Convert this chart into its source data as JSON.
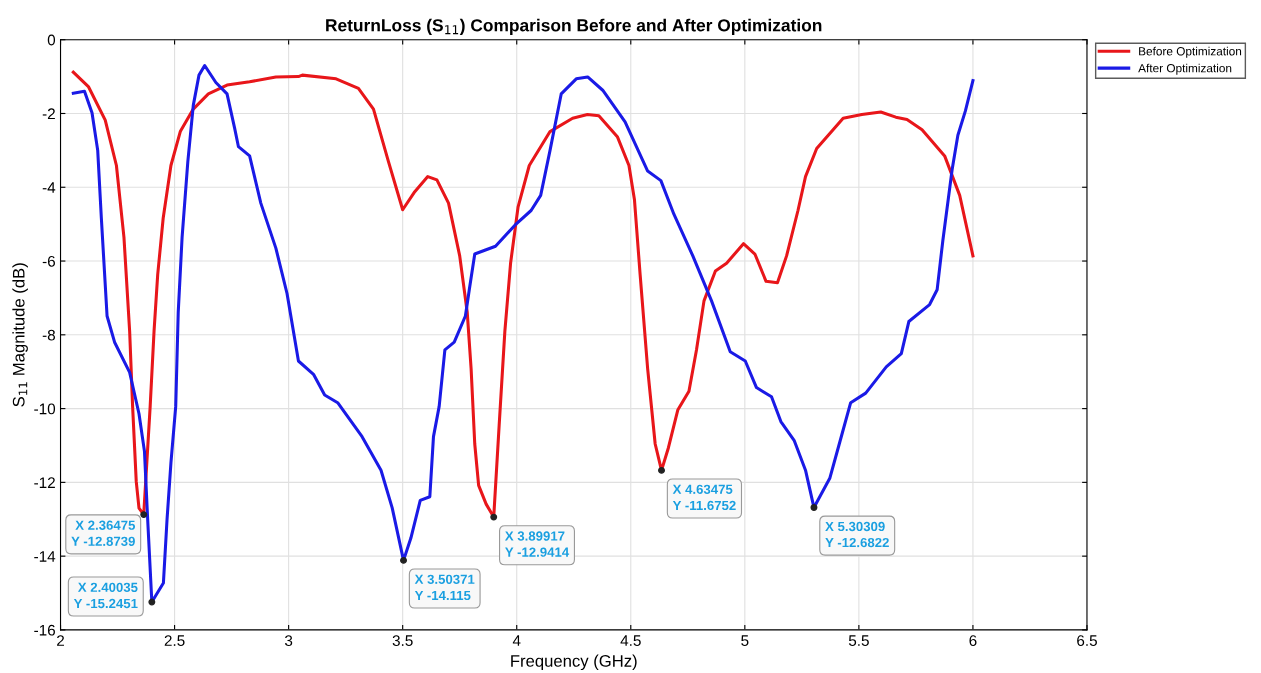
{
  "chart_data": {
    "type": "line",
    "title": "ReturnLoss (S$_{11}$) Comparison Before and After Optimization",
    "xlabel": "Frequency (GHz)",
    "ylabel": "S$_{11}$ Magnitude (dB)",
    "xlim": [
      2,
      6.5
    ],
    "xticks": [
      2,
      2.5,
      3,
      3.5,
      4,
      4.5,
      5,
      5.5,
      6,
      6.5
    ],
    "ylim": [
      -16,
      0
    ],
    "yticks": [
      -16,
      -14,
      -12,
      -10,
      -8,
      -6,
      -4,
      -2,
      0
    ],
    "grid": true,
    "legend": "top right",
    "line_style": "solid",
    "marker": "none",
    "series": [
      {
        "name": "Before Optimization",
        "color": "#e8161a",
        "x": [
          2.056,
          2.122,
          2.196,
          2.245,
          2.278,
          2.303,
          2.316,
          2.332,
          2.344,
          2.36475,
          2.393,
          2.41,
          2.426,
          2.45,
          2.484,
          2.525,
          2.582,
          2.648,
          2.73,
          2.829,
          2.944,
          3.043,
          3.06,
          3.208,
          3.306,
          3.372,
          3.438,
          3.5,
          3.553,
          3.61,
          3.65,
          3.701,
          3.75,
          3.783,
          3.8,
          3.816,
          3.833,
          3.866,
          3.89917,
          3.923,
          3.948,
          3.973,
          4.006,
          4.055,
          4.146,
          4.245,
          4.31,
          4.36,
          4.442,
          4.492,
          4.516,
          4.541,
          4.574,
          4.607,
          4.63475,
          4.665,
          4.706,
          4.755,
          4.788,
          4.821,
          4.871,
          4.92,
          4.994,
          5.044,
          5.093,
          5.143,
          5.183,
          5.233,
          5.266,
          5.315,
          5.431,
          5.513,
          5.596,
          5.662,
          5.711,
          5.777,
          5.876,
          5.942,
          6.0
        ],
        "values": [
          -0.88,
          -1.27,
          -2.18,
          -3.41,
          -5.35,
          -7.9,
          -9.94,
          -11.98,
          -12.7,
          -12.8739,
          -9.94,
          -7.9,
          -6.37,
          -4.84,
          -3.41,
          -2.49,
          -1.88,
          -1.47,
          -1.23,
          -1.14,
          -1.01,
          -1.0,
          -0.96,
          -1.06,
          -1.32,
          -1.88,
          -3.31,
          -4.61,
          -4.12,
          -3.71,
          -3.8,
          -4.43,
          -5.86,
          -7.39,
          -8.92,
          -10.96,
          -12.08,
          -12.59,
          -12.9414,
          -10.45,
          -7.9,
          -6.06,
          -4.53,
          -3.41,
          -2.49,
          -2.13,
          -2.03,
          -2.06,
          -2.64,
          -3.41,
          -4.33,
          -6.37,
          -8.92,
          -10.96,
          -11.6752,
          -11.06,
          -10.04,
          -9.53,
          -8.41,
          -7.08,
          -6.27,
          -6.06,
          -5.53,
          -5.81,
          -6.55,
          -6.59,
          -5.86,
          -4.63,
          -3.71,
          -2.95,
          -2.13,
          -2.03,
          -1.96,
          -2.1,
          -2.16,
          -2.44,
          -3.15,
          -4.22,
          -5.86
        ]
      },
      {
        "name": "After Optimization",
        "color": "#1a1ae6",
        "x": [
          2.056,
          2.105,
          2.138,
          2.163,
          2.179,
          2.204,
          2.237,
          2.303,
          2.344,
          2.368,
          2.382,
          2.40035,
          2.451,
          2.467,
          2.484,
          2.505,
          2.516,
          2.533,
          2.558,
          2.582,
          2.607,
          2.632,
          2.681,
          2.73,
          2.763,
          2.78,
          2.829,
          2.878,
          2.944,
          2.993,
          3.043,
          3.109,
          3.158,
          3.215,
          3.322,
          3.405,
          3.454,
          3.50371,
          3.536,
          3.577,
          3.619,
          3.635,
          3.66,
          3.685,
          3.726,
          3.775,
          3.792,
          3.816,
          3.907,
          3.998,
          4.063,
          4.105,
          4.146,
          4.195,
          4.261,
          4.311,
          4.377,
          4.475,
          4.574,
          4.632,
          4.689,
          4.772,
          4.854,
          4.936,
          5.002,
          5.051,
          5.117,
          5.158,
          5.216,
          5.266,
          5.30309,
          5.373,
          5.414,
          5.464,
          5.53,
          5.62,
          5.686,
          5.719,
          5.81,
          5.843,
          5.868,
          5.909,
          5.934,
          5.967,
          6.0
        ],
        "values": [
          -1.45,
          -1.4,
          -1.98,
          -3.0,
          -4.84,
          -7.49,
          -8.2,
          -9.02,
          -10.14,
          -11.16,
          -13.0,
          -15.2451,
          -14.73,
          -13.0,
          -11.47,
          -9.94,
          -7.39,
          -5.35,
          -3.31,
          -1.78,
          -0.96,
          -0.7,
          -1.16,
          -1.47,
          -2.39,
          -2.9,
          -3.15,
          -4.43,
          -5.65,
          -6.88,
          -8.71,
          -9.07,
          -9.63,
          -9.84,
          -10.76,
          -11.67,
          -12.69,
          -14.115,
          -13.51,
          -12.49,
          -12.39,
          -10.76,
          -9.94,
          -8.41,
          -8.2,
          -7.49,
          -6.78,
          -5.81,
          -5.6,
          -4.99,
          -4.63,
          -4.22,
          -3.0,
          -1.47,
          -1.06,
          -1.01,
          -1.37,
          -2.23,
          -3.56,
          -3.82,
          -4.73,
          -5.86,
          -7.08,
          -8.46,
          -8.71,
          -9.43,
          -9.68,
          -10.35,
          -10.86,
          -11.67,
          -12.6822,
          -11.88,
          -10.96,
          -9.84,
          -9.58,
          -8.87,
          -8.51,
          -7.64,
          -7.18,
          -6.78,
          -5.45,
          -3.51,
          -2.59,
          -1.93,
          -1.11
        ]
      }
    ],
    "annotations": [
      {
        "text": "X 2.36475\nY -12.8739",
        "x": 2.36475,
        "y": -12.8739
      },
      {
        "text": "X 2.40035\nY -15.2451",
        "x": 2.40035,
        "y": -15.2451
      },
      {
        "text": "X 3.50371\nY -14.115",
        "x": 3.50371,
        "y": -14.115
      },
      {
        "text": "X 3.89917\nY -12.9414",
        "x": 3.89917,
        "y": -12.9414
      },
      {
        "text": "X 4.63475\nY -11.6752",
        "x": 4.63475,
        "y": -11.6752
      },
      {
        "text": "X 5.30309\nY -12.6822",
        "x": 5.30309,
        "y": -12.6822
      }
    ]
  }
}
